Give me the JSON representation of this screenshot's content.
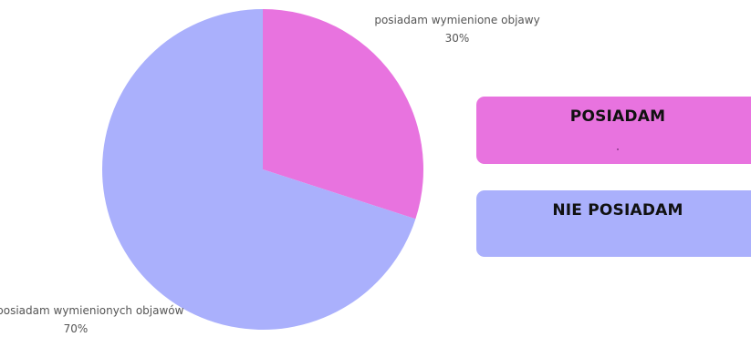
{
  "chart_data": {
    "type": "pie",
    "start_angle": "12 o'clock, clockwise",
    "slices": [
      {
        "label": "posiadam wymienione objawy",
        "value": 30,
        "value_label": "30%",
        "color": "#e873df"
      },
      {
        "label": "nie posiadam wymienionych objawów",
        "value": 70,
        "value_label": "70%",
        "color": "#aab0fc"
      }
    ]
  },
  "legend": {
    "items": [
      {
        "label": "POSIADAM",
        "color": "#e873df"
      },
      {
        "label": "NIE POSIADAM",
        "color": "#aab0fc"
      }
    ]
  }
}
